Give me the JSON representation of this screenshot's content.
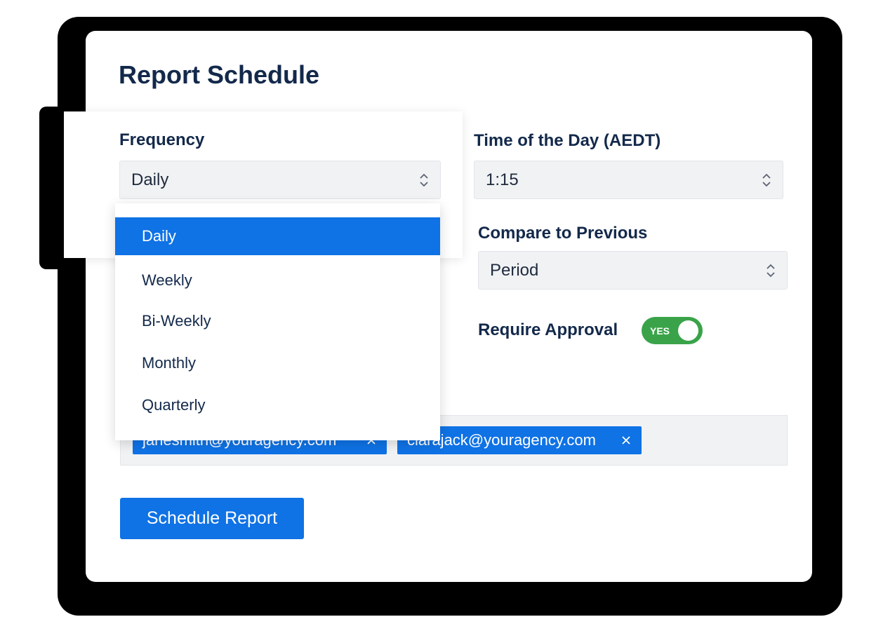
{
  "colors": {
    "accent": "#0f72e5",
    "toggle_on": "#3aa34a",
    "heading": "#13294b"
  },
  "page": {
    "title": "Report Schedule"
  },
  "frequency": {
    "label": "Frequency",
    "value": "Daily",
    "options": [
      "Daily",
      "Weekly",
      "Bi-Weekly",
      "Monthly",
      "Quarterly"
    ],
    "selected_index": 0,
    "icon": "chevron-up-down-icon"
  },
  "time_of_day": {
    "label": "Time of the Day (AEDT)",
    "value": "1:15",
    "icon": "chevron-up-down-icon"
  },
  "compare": {
    "label": "Compare to Previous",
    "value": "Period",
    "icon": "chevron-up-down-icon"
  },
  "approval": {
    "label": "Require Approval",
    "toggle_text": "YES",
    "enabled": true
  },
  "recipients": {
    "emails": [
      "janesmith@youragency.com",
      "clarajack@youragency.com"
    ],
    "remove_icon": "close-icon"
  },
  "actions": {
    "schedule_label": "Schedule Report"
  }
}
